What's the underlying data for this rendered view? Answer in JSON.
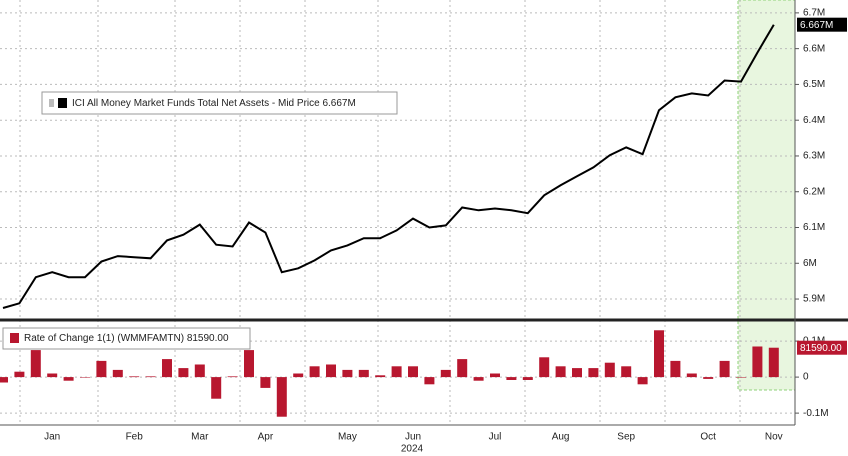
{
  "chart_data": [
    {
      "type": "line",
      "categories": [
        null,
        null,
        null,
        "Jan",
        null,
        null,
        null,
        null,
        "Feb",
        null,
        null,
        null,
        "Mar",
        null,
        null,
        null,
        "Apr",
        null,
        null,
        null,
        null,
        "May",
        null,
        null,
        null,
        "Jun",
        null,
        null,
        null,
        null,
        "Jul",
        null,
        null,
        null,
        "Aug",
        null,
        null,
        null,
        "Sep",
        null,
        null,
        null,
        null,
        "Oct",
        null,
        null,
        null,
        "Nov"
      ],
      "series": [
        {
          "name": "ICI All Money Market Funds Total Net Assets - Mid Price 6.667M",
          "color": "#000000",
          "values": [
            5875000,
            5888000,
            5961000,
            5975000,
            5961000,
            5961000,
            6005000,
            6020000,
            6017000,
            6014000,
            6064000,
            6080000,
            6108000,
            6052000,
            6047000,
            6114000,
            6086000,
            5975000,
            5986000,
            6008000,
            6036000,
            6050000,
            6070000,
            6070000,
            6092000,
            6125000,
            6100000,
            6106000,
            6156000,
            6148000,
            6153000,
            6148000,
            6140000,
            6190000,
            6218000,
            6243000,
            6268000,
            6302000,
            6324000,
            6305000,
            6428000,
            6464000,
            6475000,
            6469000,
            6511000,
            6508000,
            6589000,
            6667000
          ],
          "value_labels": [
            null,
            null,
            null,
            null,
            null,
            null,
            null,
            null,
            null,
            null,
            null,
            null,
            null,
            null,
            null,
            null,
            null,
            null,
            null,
            null,
            null,
            null,
            null,
            null,
            null,
            null,
            null,
            null,
            null,
            null,
            null,
            null,
            null,
            null,
            null,
            null,
            null,
            null,
            null,
            null,
            null,
            null,
            null,
            null,
            null,
            null,
            null,
            "6.667M"
          ]
        }
      ],
      "ylim": [
        5847000,
        6736000
      ],
      "yticks": [
        {
          "value": 5900000,
          "label": "5.9M"
        },
        {
          "value": 6000000,
          "label": "6M"
        },
        {
          "value": 6100000,
          "label": "6.1M"
        },
        {
          "value": 6200000,
          "label": "6.2M"
        },
        {
          "value": 6300000,
          "label": "6.3M"
        },
        {
          "value": 6400000,
          "label": "6.4M"
        },
        {
          "value": 6500000,
          "label": "6.5M"
        },
        {
          "value": 6600000,
          "label": "6.6M"
        },
        {
          "value": 6700000,
          "label": "6.7M"
        }
      ],
      "grid": true
    },
    {
      "type": "bar",
      "xlabel": "2024",
      "categories": [
        null,
        null,
        null,
        "Jan",
        null,
        null,
        null,
        null,
        "Feb",
        null,
        null,
        null,
        "Mar",
        null,
        null,
        null,
        "Apr",
        null,
        null,
        null,
        null,
        "May",
        null,
        null,
        null,
        "Jun",
        null,
        null,
        null,
        null,
        "Jul",
        null,
        null,
        null,
        "Aug",
        null,
        null,
        null,
        "Sep",
        null,
        null,
        null,
        null,
        "Oct",
        null,
        null,
        null,
        "Nov"
      ],
      "series": [
        {
          "name": "Rate of Change 1(1) (WMMFAMTN) 81590.00",
          "color": "#b8172f",
          "values": [
            -15000,
            15000,
            75000,
            10000,
            -10000,
            0,
            45000,
            20000,
            2000,
            2000,
            50000,
            25000,
            35000,
            -60000,
            2000,
            75000,
            -30000,
            -110000,
            10000,
            30000,
            35000,
            20000,
            20000,
            5000,
            30000,
            30000,
            -20000,
            20000,
            50000,
            -10000,
            10000,
            -8000,
            -8000,
            55000,
            30000,
            25000,
            25000,
            40000,
            30000,
            -20000,
            130000,
            45000,
            10000,
            -5000,
            45000,
            0,
            85000,
            81590
          ],
          "value_labels": [
            null,
            null,
            null,
            null,
            null,
            null,
            null,
            null,
            null,
            null,
            null,
            null,
            null,
            null,
            null,
            null,
            null,
            null,
            null,
            null,
            null,
            null,
            null,
            null,
            null,
            null,
            null,
            null,
            null,
            null,
            null,
            null,
            null,
            null,
            null,
            null,
            null,
            null,
            null,
            null,
            null,
            null,
            null,
            null,
            null,
            null,
            null,
            "81590.00"
          ]
        }
      ],
      "ylim": [
        -133000,
        153000
      ],
      "yticks": [
        {
          "value": -100000,
          "label": "-0.1M"
        },
        0,
        {
          "value": 100000,
          "label": "0.1M"
        }
      ],
      "grid": true
    }
  ]
}
